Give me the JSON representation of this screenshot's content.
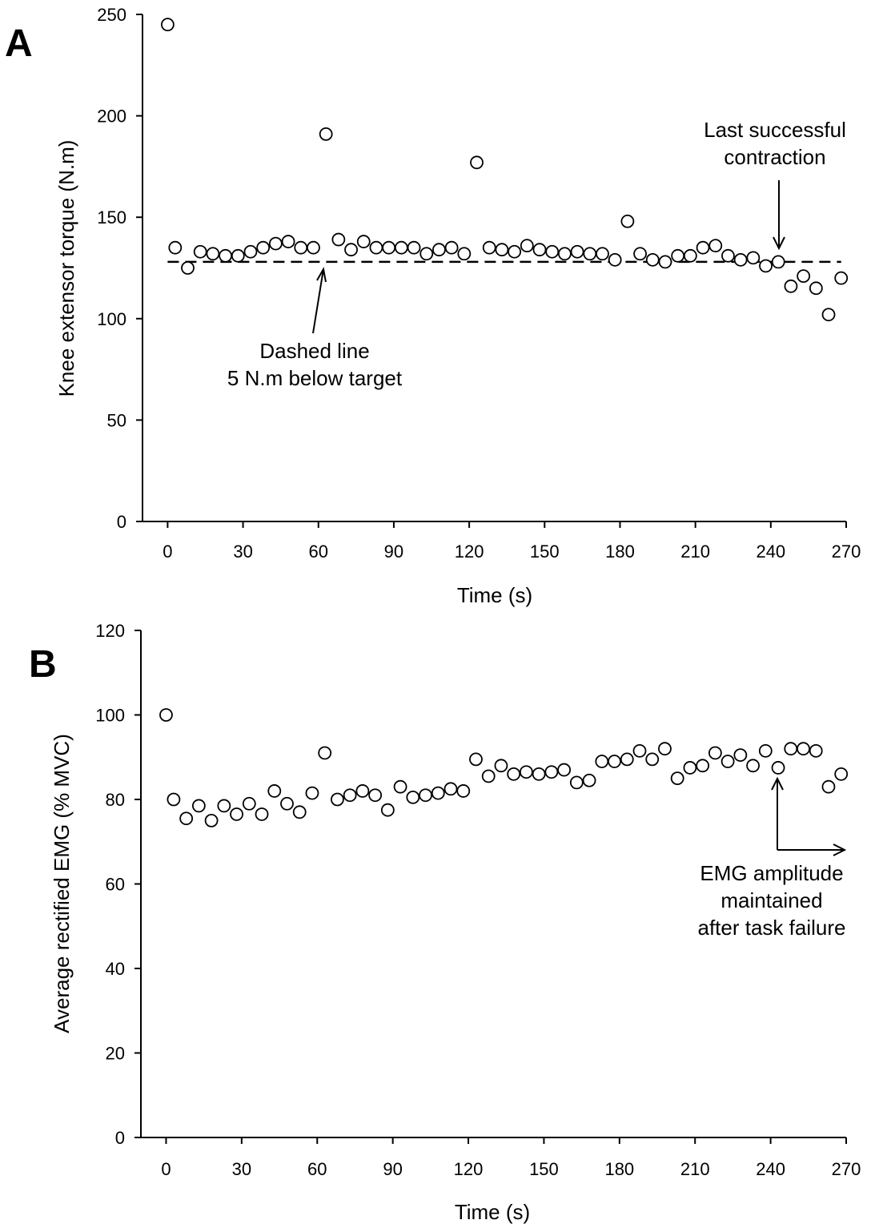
{
  "chart_data": [
    {
      "panel_label": "A",
      "type": "scatter",
      "xlabel": "Time (s)",
      "ylabel": "Knee extensor torque (N.m)",
      "xlim": [
        -10,
        270
      ],
      "ylim": [
        0,
        250
      ],
      "xticks": [
        0,
        30,
        60,
        90,
        120,
        150,
        180,
        210,
        240,
        270
      ],
      "yticks": [
        0,
        50,
        100,
        150,
        200,
        250
      ],
      "reference_line": {
        "y": 128,
        "x_from": 0,
        "x_to": 268,
        "style": "dashed"
      },
      "series": [
        {
          "marker": "open-circle",
          "x": [
            0,
            3,
            8,
            13,
            18,
            23,
            28,
            33,
            38,
            43,
            48,
            53,
            58,
            63,
            68,
            73,
            78,
            83,
            88,
            93,
            98,
            103,
            108,
            113,
            118,
            123,
            128,
            133,
            138,
            143,
            148,
            153,
            158,
            163,
            168,
            173,
            178,
            183,
            188,
            193,
            198,
            203,
            208,
            213,
            218,
            223,
            228,
            233,
            238,
            243,
            248,
            253,
            258,
            263,
            268
          ],
          "y": [
            245,
            135,
            125,
            133,
            132,
            131,
            131,
            133,
            135,
            137,
            138,
            135,
            135,
            191,
            139,
            134,
            138,
            135,
            135,
            135,
            135,
            132,
            134,
            135,
            132,
            177,
            135,
            134,
            133,
            136,
            134,
            133,
            132,
            133,
            132,
            132,
            129,
            148,
            132,
            129,
            128,
            131,
            131,
            135,
            136,
            131,
            129,
            130,
            126,
            128,
            116,
            121,
            115,
            102,
            120
          ]
        }
      ],
      "annotations": [
        {
          "lines": [
            "Dashed line",
            "5 N.m below target"
          ],
          "arrow_to": [
            62,
            128
          ]
        },
        {
          "lines": [
            "Last successful",
            "contraction"
          ],
          "arrow_to": [
            243,
            133
          ]
        }
      ]
    },
    {
      "panel_label": "B",
      "type": "scatter",
      "xlabel": "Time (s)",
      "ylabel": "Average rectified EMG (% MVC)",
      "xlim": [
        -10,
        270
      ],
      "ylim": [
        0,
        120
      ],
      "xticks": [
        0,
        30,
        60,
        90,
        120,
        150,
        180,
        210,
        240,
        270
      ],
      "yticks": [
        0,
        20,
        40,
        60,
        80,
        100,
        120
      ],
      "series": [
        {
          "marker": "open-circle",
          "x": [
            0,
            3,
            8,
            13,
            18,
            23,
            28,
            33,
            38,
            43,
            48,
            53,
            58,
            63,
            68,
            73,
            78,
            83,
            88,
            93,
            98,
            103,
            108,
            113,
            118,
            123,
            128,
            133,
            138,
            143,
            148,
            153,
            158,
            163,
            168,
            173,
            178,
            183,
            188,
            193,
            198,
            203,
            208,
            213,
            218,
            223,
            228,
            233,
            238,
            243,
            248,
            253,
            258,
            263,
            268
          ],
          "y": [
            100,
            80,
            75.5,
            78.5,
            75,
            78.5,
            76.5,
            79,
            76.5,
            82,
            79,
            77,
            81.5,
            91,
            80,
            81,
            82,
            81,
            77.5,
            83,
            80.5,
            81,
            81.5,
            82.5,
            82,
            89.5,
            85.5,
            88,
            86,
            86.5,
            86,
            86.5,
            87,
            84,
            84.5,
            89,
            89,
            89.5,
            91.5,
            89.5,
            92,
            85,
            87.5,
            88,
            91,
            89,
            90.5,
            88,
            91.5,
            87.5,
            92,
            92,
            91.5,
            83,
            86
          ]
        }
      ],
      "annotations": [
        {
          "lines": [
            "EMG amplitude",
            "maintained",
            "after task failure"
          ],
          "arrow_from": [
            243,
            68
          ],
          "arrow_up_to": [
            243,
            86
          ],
          "arrow_right_to": [
            268,
            68
          ]
        }
      ]
    }
  ]
}
